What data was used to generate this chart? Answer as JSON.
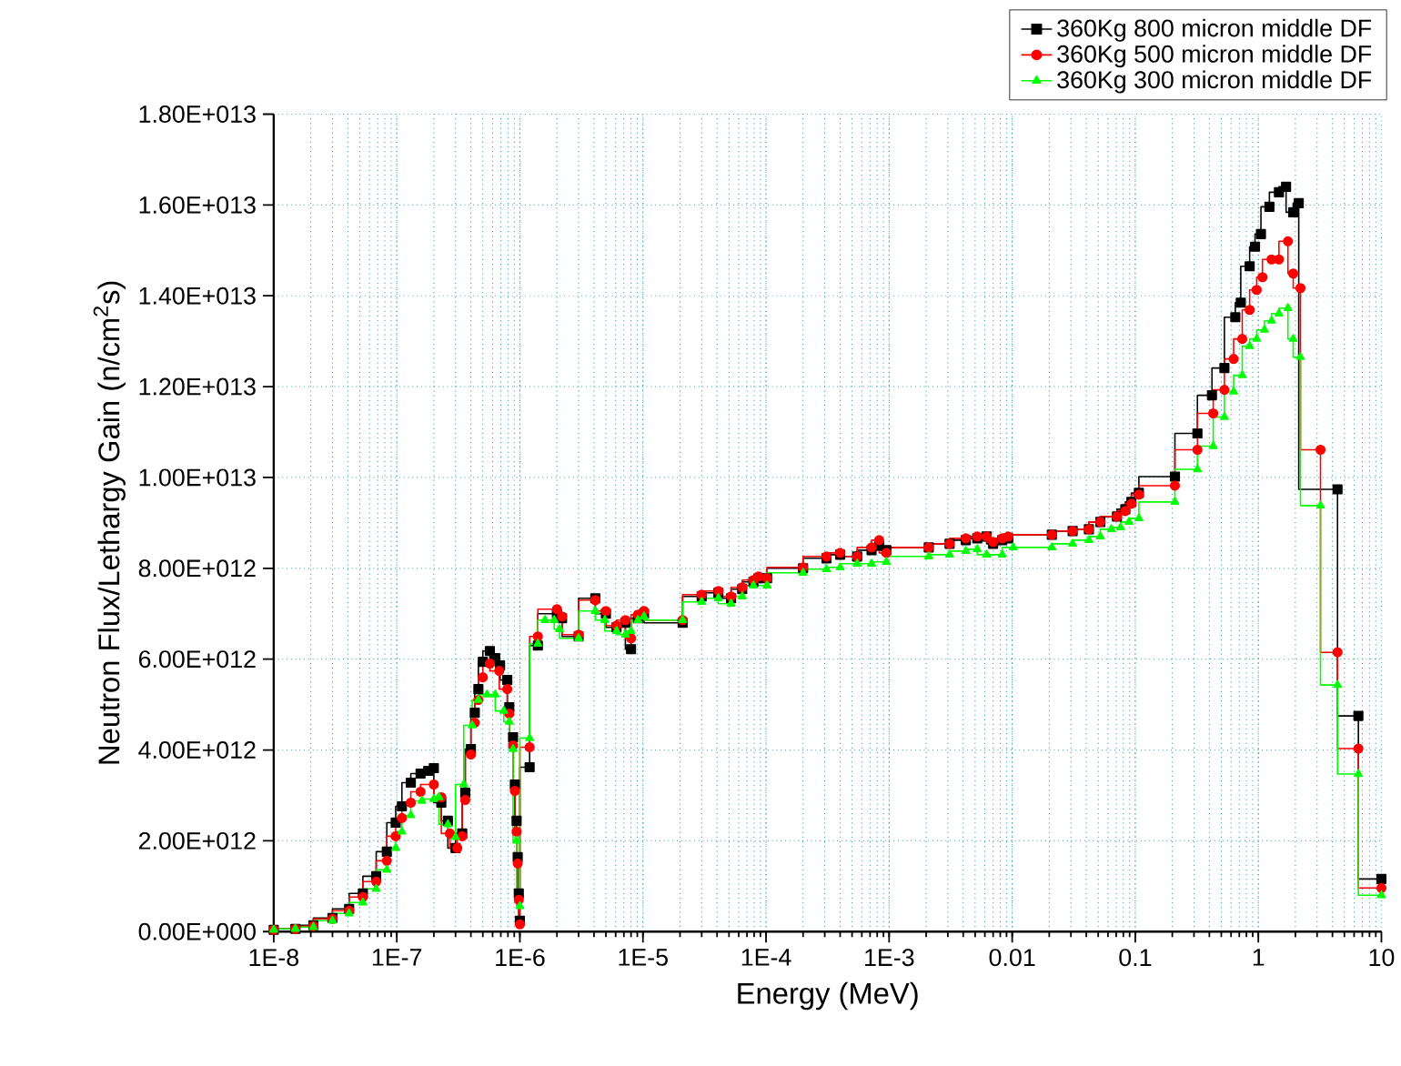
{
  "chart_data": {
    "type": "step",
    "xlabel": "Energy (MeV)",
    "ylabel": "Neutron Flux/Lethargy Gain (n/cm$^{2}$s)",
    "log": "x",
    "grid": true,
    "legend": "top right",
    "xlim": [
      1e-08,
      10
    ],
    "ylim": [
      0,
      18000000000000.0
    ],
    "xticks": [
      {
        "value": 1e-08,
        "label": "1E-8"
      },
      {
        "value": 1e-07,
        "label": "1E-7"
      },
      {
        "value": 1e-06,
        "label": "1E-6"
      },
      {
        "value": 1e-05,
        "label": "1E-5"
      },
      {
        "value": 0.0001,
        "label": "1E-4"
      },
      {
        "value": 0.001,
        "label": "1E-3"
      },
      0.01,
      0.1,
      1,
      10
    ],
    "yticks": [
      {
        "value": 0,
        "label": "0.00E+000"
      },
      {
        "value": 2000000000000.0,
        "label": "2.00E+012"
      },
      {
        "value": 4000000000000.0,
        "label": "4.00E+012"
      },
      {
        "value": 6000000000000.0,
        "label": "6.00E+012"
      },
      {
        "value": 8000000000000.0,
        "label": "8.00E+012"
      },
      {
        "value": 10000000000000.0,
        "label": "1.00E+013"
      },
      {
        "value": 12000000000000.0,
        "label": "1.20E+013"
      },
      {
        "value": 14000000000000.0,
        "label": "1.40E+013"
      },
      {
        "value": 16000000000000.0,
        "label": "1.60E+013"
      },
      {
        "value": 18000000000000.0,
        "label": "1.80E+013"
      }
    ],
    "series": [
      {
        "name": "360Kg 800 micron middle DF",
        "color": "#000000",
        "marker": "square",
        "x": [
          1e-08,
          1.5e-08,
          2.1e-08,
          3e-08,
          4.1e-08,
          5.3e-08,
          6.8e-08,
          8.3e-08,
          9.8e-08,
          1.1e-07,
          1.3e-07,
          1.56e-07,
          1.8e-07,
          2e-07,
          2.3e-07,
          2.6e-07,
          3e-07,
          3.4e-07,
          3.6e-07,
          4e-07,
          4.3e-07,
          4.6e-07,
          5e-07,
          5.7e-07,
          6.3e-07,
          6.9e-07,
          7.9e-07,
          8.2e-07,
          8.8e-07,
          9.1e-07,
          9.4e-07,
          9.6e-07,
          9.8e-07,
          1e-06,
          1.2e-06,
          1.4e-06,
          2e-06,
          2.2e-06,
          3e-06,
          4.1e-06,
          5e-06,
          6.1e-06,
          7.2e-06,
          8e-06,
          9.1e-06,
          1.02e-05,
          2.1e-05,
          3e-05,
          4.1e-05,
          5.2e-05,
          6.4e-05,
          7.9e-05,
          8.7e-05,
          0.000102,
          0.0002,
          0.00031,
          0.0004,
          0.00055,
          0.00072,
          0.00083,
          0.00095,
          0.0021,
          0.0031,
          0.0042,
          0.0052,
          0.0062,
          0.007,
          0.0083,
          0.0093,
          0.021,
          0.031,
          0.042,
          0.052,
          0.071,
          0.083,
          0.093,
          0.107,
          0.21,
          0.32,
          0.42,
          0.53,
          0.65,
          0.72,
          0.85,
          0.94,
          1.05,
          1.23,
          1.47,
          1.68,
          1.92,
          2.13,
          4.4,
          6.5,
          10
        ],
        "values": [
          40000000000.0,
          60000000000.0,
          140000000000.0,
          300000000000.0,
          500000000000.0,
          840000000000.0,
          1220000000000.0,
          1760000000000.0,
          2400000000000.0,
          2760000000000.0,
          3280000000000.0,
          3480000000000.0,
          3540000000000.0,
          3600000000000.0,
          2840000000000.0,
          2440000000000.0,
          1840000000000.0,
          2160000000000.0,
          3060000000000.0,
          4020000000000.0,
          4820000000000.0,
          5340000000000.0,
          5940000000000.0,
          6180000000000.0,
          6020000000000.0,
          5860000000000.0,
          5540000000000.0,
          4940000000000.0,
          4280000000000.0,
          3240000000000.0,
          2440000000000.0,
          1640000000000.0,
          840000000000.0,
          240000000000.0,
          3620000000000.0,
          6300000000000.0,
          7000000000000.0,
          6900000000000.0,
          6500000000000.0,
          7340000000000.0,
          7000000000000.0,
          6700000000000.0,
          6800000000000.0,
          6220000000000.0,
          6900000000000.0,
          7000000000000.0,
          6800000000000.0,
          7380000000000.0,
          7460000000000.0,
          7340000000000.0,
          7540000000000.0,
          7700000000000.0,
          7780000000000.0,
          7780000000000.0,
          8000000000000.0,
          8220000000000.0,
          8300000000000.0,
          8260000000000.0,
          8400000000000.0,
          8500000000000.0,
          8400000000000.0,
          8460000000000.0,
          8540000000000.0,
          8620000000000.0,
          8660000000000.0,
          8700000000000.0,
          8540000000000.0,
          8620000000000.0,
          8660000000000.0,
          8740000000000.0,
          8820000000000.0,
          8860000000000.0,
          9020000000000.0,
          9140000000000.0,
          9300000000000.0,
          9460000000000.0,
          9660000000000.0,
          10020000000000.0,
          10970000000000.0,
          11810000000000.0,
          12410000000000.0,
          13530000000000.0,
          13850000000000.0,
          14650000000000.0,
          15080000000000.0,
          15360000000000.0,
          15960000000000.0,
          16280000000000.0,
          16400000000000.0,
          15840000000000.0,
          16040000000000.0,
          9740000000000.0,
          4750000000000.0,
          1160000000000.0
        ]
      },
      {
        "name": "360Kg 500 micron middle DF",
        "color": "#ff0000",
        "marker": "circle",
        "x": [
          1e-08,
          1.5e-08,
          2.1e-08,
          3e-08,
          4.1e-08,
          5.3e-08,
          6.8e-08,
          8.3e-08,
          9.8e-08,
          1.1e-07,
          1.3e-07,
          1.56e-07,
          2e-07,
          2.3e-07,
          2.7e-07,
          3.1e-07,
          3.4e-07,
          3.6e-07,
          4e-07,
          4.3e-07,
          4.6e-07,
          5e-07,
          5.7e-07,
          6.8e-07,
          7.9e-07,
          8.2e-07,
          8.8e-07,
          9.1e-07,
          9.4e-07,
          9.6e-07,
          9.8e-07,
          1e-06,
          1.2e-06,
          1.4e-06,
          2e-06,
          2.2e-06,
          3e-06,
          4.1e-06,
          5e-06,
          6.1e-06,
          7.2e-06,
          8e-06,
          9.1e-06,
          1.02e-05,
          2.1e-05,
          3e-05,
          4.1e-05,
          5.2e-05,
          6.4e-05,
          7.9e-05,
          8.7e-05,
          0.000102,
          0.0002,
          0.00031,
          0.0004,
          0.00055,
          0.00072,
          0.00083,
          0.00095,
          0.0021,
          0.0031,
          0.0042,
          0.0052,
          0.0062,
          0.007,
          0.0083,
          0.0093,
          0.021,
          0.031,
          0.042,
          0.052,
          0.071,
          0.083,
          0.093,
          0.107,
          0.21,
          0.32,
          0.43,
          0.53,
          0.63,
          0.74,
          0.85,
          0.97,
          1.08,
          1.28,
          1.47,
          1.74,
          1.92,
          2.2,
          3.2,
          4.4,
          6.5,
          10
        ],
        "values": [
          40000000000.0,
          60000000000.0,
          120000000000.0,
          280000000000.0,
          460000000000.0,
          760000000000.0,
          1100000000000.0,
          1560000000000.0,
          2100000000000.0,
          2500000000000.0,
          2840000000000.0,
          3080000000000.0,
          3240000000000.0,
          2960000000000.0,
          2160000000000.0,
          1840000000000.0,
          2100000000000.0,
          2900000000000.0,
          3900000000000.0,
          4600000000000.0,
          5100000000000.0,
          5600000000000.0,
          5900000000000.0,
          5740000000000.0,
          5340000000000.0,
          4800000000000.0,
          4100000000000.0,
          3100000000000.0,
          2200000000000.0,
          1500000000000.0,
          700000000000.0,
          160000000000.0,
          4060000000000.0,
          6500000000000.0,
          7100000000000.0,
          6940000000000.0,
          6540000000000.0,
          7300000000000.0,
          7060000000000.0,
          6740000000000.0,
          6860000000000.0,
          6460000000000.0,
          6980000000000.0,
          7060000000000.0,
          6860000000000.0,
          7420000000000.0,
          7500000000000.0,
          7380000000000.0,
          7580000000000.0,
          7740000000000.0,
          7820000000000.0,
          7780000000000.0,
          8020000000000.0,
          8260000000000.0,
          8340000000000.0,
          8260000000000.0,
          8460000000000.0,
          8620000000000.0,
          8340000000000.0,
          8460000000000.0,
          8540000000000.0,
          8660000000000.0,
          8700000000000.0,
          8700000000000.0,
          8580000000000.0,
          8660000000000.0,
          8700000000000.0,
          8740000000000.0,
          8820000000000.0,
          8860000000000.0,
          9020000000000.0,
          9140000000000.0,
          9260000000000.0,
          9420000000000.0,
          9620000000000.0,
          9820000000000.0,
          10610000000000.0,
          11410000000000.0,
          11930000000000.0,
          12610000000000.0,
          13050000000000.0,
          13690000000000.0,
          14130000000000.0,
          14410000000000.0,
          14800000000000.0,
          14800000000000.0,
          15200000000000.0,
          14490000000000.0,
          14170000000000.0,
          10610000000000.0,
          6150000000000.0,
          4030000000000.0,
          960000000000.0
        ]
      },
      {
        "name": "360Kg 300 micron middle DF",
        "color": "#00ff00",
        "marker": "triangle",
        "x": [
          1e-08,
          1.5e-08,
          2.1e-08,
          3e-08,
          4.1e-08,
          5.3e-08,
          6.8e-08,
          8.3e-08,
          9.8e-08,
          1.1e-07,
          1.3e-07,
          1.6e-07,
          2e-07,
          2.2e-07,
          2.6e-07,
          3e-07,
          3.5e-07,
          4.1e-07,
          4.6e-07,
          5.4e-07,
          6.3e-07,
          7.4e-07,
          8.2e-07,
          8.8e-07,
          9.4e-07,
          1e-06,
          1.2e-06,
          1.4e-06,
          1.6e-06,
          1.9e-06,
          2.1e-06,
          3e-06,
          4.1e-06,
          4.9e-06,
          6.1e-06,
          7.2e-06,
          8e-06,
          9.1e-06,
          1.02e-05,
          2.1e-05,
          3e-05,
          4.1e-05,
          5.2e-05,
          6.4e-05,
          7.9e-05,
          0.000102,
          0.0002,
          0.00031,
          0.0004,
          0.00055,
          0.00072,
          0.00095,
          0.0021,
          0.0031,
          0.0042,
          0.0052,
          0.0062,
          0.0083,
          0.0102,
          0.021,
          0.031,
          0.042,
          0.052,
          0.064,
          0.076,
          0.089,
          0.107,
          0.21,
          0.32,
          0.43,
          0.53,
          0.63,
          0.74,
          0.85,
          0.97,
          1.12,
          1.28,
          1.47,
          1.74,
          1.92,
          2.2,
          3.2,
          4.4,
          6.5,
          10
        ],
        "values": [
          40000000000.0,
          60000000000.0,
          100000000000.0,
          240000000000.0,
          400000000000.0,
          640000000000.0,
          940000000000.0,
          1360000000000.0,
          1840000000000.0,
          2200000000000.0,
          2560000000000.0,
          2880000000000.0,
          2920000000000.0,
          2960000000000.0,
          2360000000000.0,
          2080000000000.0,
          3240000000000.0,
          4540000000000.0,
          5100000000000.0,
          5220000000000.0,
          5220000000000.0,
          4860000000000.0,
          4620000000000.0,
          4020000000000.0,
          2000000000000.0,
          560000000000.0,
          4260000000000.0,
          6340000000000.0,
          6860000000000.0,
          6860000000000.0,
          6660000000000.0,
          6460000000000.0,
          7060000000000.0,
          6860000000000.0,
          6620000000000.0,
          6540000000000.0,
          6620000000000.0,
          6860000000000.0,
          6940000000000.0,
          6860000000000.0,
          7260000000000.0,
          7340000000000.0,
          7220000000000.0,
          7380000000000.0,
          7620000000000.0,
          7620000000000.0,
          7900000000000.0,
          7980000000000.0,
          8020000000000.0,
          8100000000000.0,
          8100000000000.0,
          8140000000000.0,
          8260000000000.0,
          8300000000000.0,
          8380000000000.0,
          8420000000000.0,
          8300000000000.0,
          8300000000000.0,
          8460000000000.0,
          8460000000000.0,
          8540000000000.0,
          8620000000000.0,
          8700000000000.0,
          8860000000000.0,
          8900000000000.0,
          9020000000000.0,
          9100000000000.0,
          9460000000000.0,
          10180000000000.0,
          10690000000000.0,
          11330000000000.0,
          11890000000000.0,
          12250000000000.0,
          12890000000000.0,
          13050000000000.0,
          13250000000000.0,
          13450000000000.0,
          13610000000000.0,
          13730000000000.0,
          13050000000000.0,
          12650000000000.0,
          9380000000000.0,
          5430000000000.0,
          3470000000000.0,
          800000000000.0
        ]
      }
    ]
  }
}
